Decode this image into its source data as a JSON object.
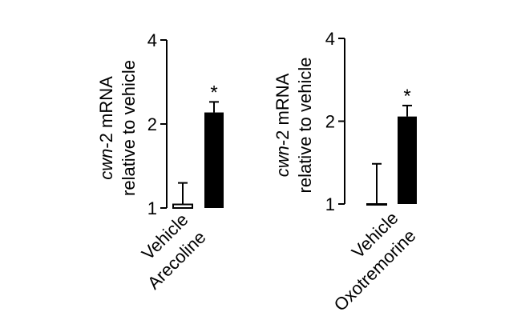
{
  "chart_data": [
    {
      "type": "bar",
      "ylabel": {
        "italic": "cwn",
        "rest": "-2 mRNA",
        "line2": "relative to vehicle"
      },
      "categories": [
        "Vehicle",
        "Arecoline"
      ],
      "values": [
        1.03,
        2.2
      ],
      "errors": [
        0.2,
        0.2
      ],
      "fills": [
        "#ffffff",
        "#000000"
      ],
      "significance": [
        "",
        "*"
      ],
      "ylim": [
        1,
        4
      ],
      "yticks": [
        "1",
        "2",
        "4"
      ],
      "ytick_values": [
        1,
        2,
        4
      ]
    },
    {
      "type": "bar",
      "ylabel": {
        "italic": "cwn",
        "rest": "-2 mRNA",
        "line2": "relative to vehicle"
      },
      "categories": [
        "Vehicle",
        "Oxotremorine"
      ],
      "values": [
        1.0,
        2.08
      ],
      "errors": [
        0.4,
        0.2
      ],
      "fills": [
        "#ffffff",
        "#000000"
      ],
      "significance": [
        "",
        "*"
      ],
      "ylim": [
        1,
        4
      ],
      "yticks": [
        "1",
        "2",
        "4"
      ],
      "ytick_values": [
        1,
        2,
        4
      ]
    }
  ]
}
